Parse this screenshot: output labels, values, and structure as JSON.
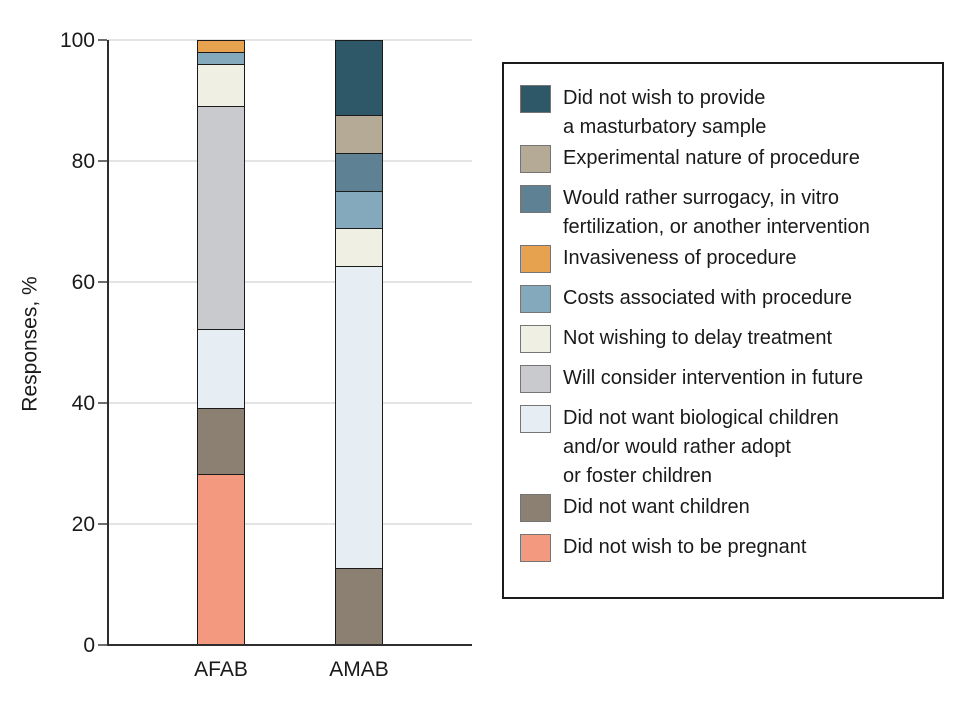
{
  "figure": {
    "ylabel": "Responses, %"
  },
  "colors": {
    "axis": "#2e2e2e",
    "grid": "#e4e4e4",
    "bar_border": "#1b1b1b",
    "legend_border": "#1b1b1b",
    "swatch_border": "#757575",
    "text": "#1a1a1a",
    "background": "#ffffff"
  },
  "chart_data": {
    "type": "bar",
    "stacked": true,
    "title": "",
    "xlabel": "",
    "ylabel": "Responses, %",
    "ylim": [
      0,
      100
    ],
    "yticks": [
      0,
      20,
      40,
      60,
      80,
      100
    ],
    "grid": "horizontal",
    "legend_position": "right",
    "categories": [
      "AFAB",
      "AMAB"
    ],
    "series": [
      {
        "name": "Did not wish to provide a masturbatory sample",
        "legend_lines": [
          "Did not wish to provide",
          "a masturbatory sample"
        ],
        "color": "#2e5767",
        "values": [
          0,
          12.5
        ]
      },
      {
        "name": "Experimental nature of procedure",
        "legend_lines": [
          "Experimental nature of procedure"
        ],
        "color": "#b5aa96",
        "values": [
          0,
          6.25
        ]
      },
      {
        "name": "Would rather surrogacy, in vitro fertilization, or another intervention",
        "legend_lines": [
          "Would rather surrogacy, in vitro",
          "fertilization, or another intervention"
        ],
        "color": "#5e8294",
        "values": [
          0,
          6.25
        ]
      },
      {
        "name": "Invasiveness of procedure",
        "legend_lines": [
          "Invasiveness of procedure"
        ],
        "color": "#e6a24f",
        "values": [
          2,
          0
        ]
      },
      {
        "name": "Costs associated with procedure",
        "legend_lines": [
          "Costs associated with procedure"
        ],
        "color": "#84a8bc",
        "values": [
          2,
          6.25
        ]
      },
      {
        "name": "Not wishing to delay treatment",
        "legend_lines": [
          "Not wishing to delay treatment"
        ],
        "color": "#f0efe3",
        "values": [
          7,
          6.25
        ]
      },
      {
        "name": "Will consider intervention in future",
        "legend_lines": [
          "Will consider intervention in future"
        ],
        "color": "#c9cacd",
        "values": [
          37,
          0
        ]
      },
      {
        "name": "Did not want biological children and/or would rather adopt or foster children",
        "legend_lines": [
          "Did not want biological children",
          "and/or would rather adopt",
          "or foster children"
        ],
        "color": "#e6eef3",
        "values": [
          13,
          50
        ]
      },
      {
        "name": "Did not want children",
        "legend_lines": [
          "Did not want children"
        ],
        "color": "#8b8072",
        "values": [
          11,
          12.5
        ]
      },
      {
        "name": "Did not wish to be pregnant",
        "legend_lines": [
          "Did not wish to be pregnant"
        ],
        "color": "#f2997f",
        "values": [
          28,
          0
        ]
      }
    ]
  }
}
